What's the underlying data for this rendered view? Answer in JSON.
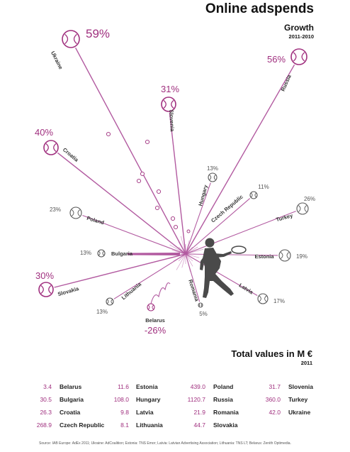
{
  "title": "Online adspends",
  "growth_title": "Growth",
  "growth_period": "2011-2010",
  "totals_title": "Total values in M €",
  "totals_year": "2011",
  "source": "Source: IAB Europe: AdEx 2011; Ukraine: AdCoalition; Estonia: TNS Emor; Latvia: Latvian Advertising Association; Lithuania: TNS LT; Belarus: Zenith Optimedia.",
  "colors": {
    "magenta": "#a0307f",
    "negative": "#a0307f",
    "gray": "#555555",
    "ray": "#b25aa0",
    "silhouette": "#4a4a4a"
  },
  "icons": {
    "ball": "tennis-ball-icon",
    "player": "tennis-player-silhouette-icon"
  },
  "chart_data": [
    {
      "type": "radial",
      "title": "Online adspends",
      "subtitle": "Growth 2011-2010",
      "series": [
        {
          "country": "Ukraine",
          "growth_label": "59%",
          "growth": 59
        },
        {
          "country": "Russia",
          "growth_label": "56%",
          "growth": 56
        },
        {
          "country": "Croatia",
          "growth_label": "40%",
          "growth": 40
        },
        {
          "country": "Slovenia",
          "growth_label": "31%",
          "growth": 31
        },
        {
          "country": "Slovakia",
          "growth_label": "30%",
          "growth": 30
        },
        {
          "country": "Turkey",
          "growth_label": "26%",
          "growth": 26
        },
        {
          "country": "Poland",
          "growth_label": "23%",
          "growth": 23
        },
        {
          "country": "Estonia",
          "growth_label": "19%",
          "growth": 19
        },
        {
          "country": "Latvia",
          "growth_label": "17%",
          "growth": 17
        },
        {
          "country": "Hungary",
          "growth_label": "13%",
          "growth": 13
        },
        {
          "country": "Bulgaria",
          "growth_label": "13%",
          "growth": 13
        },
        {
          "country": "Lithuania",
          "growth_label": "13%",
          "growth": 13
        },
        {
          "country": "Czech Republic",
          "growth_label": "11%",
          "growth": 11
        },
        {
          "country": "Romania",
          "growth_label": "5%",
          "growth": 5
        },
        {
          "country": "Belarus",
          "growth_label": "-26%",
          "growth": -26
        }
      ]
    },
    {
      "type": "table",
      "title": "Total values in M €",
      "subtitle": "2011",
      "columns": [
        [
          {
            "value": "3.4",
            "country": "Belarus"
          },
          {
            "value": "30.5",
            "country": "Bulgaria"
          },
          {
            "value": "26.3",
            "country": "Croatia"
          },
          {
            "value": "268.9",
            "country": "Czech Republic"
          }
        ],
        [
          {
            "value": "11.6",
            "country": "Estonia"
          },
          {
            "value": "108.0",
            "country": "Hungary"
          },
          {
            "value": "9.8",
            "country": "Latvia"
          },
          {
            "value": "8.1",
            "country": "Lithuania"
          }
        ],
        [
          {
            "value": "439.0",
            "country": "Poland"
          },
          {
            "value": "1120.7",
            "country": "Russia"
          },
          {
            "value": "21.9",
            "country": "Romania"
          },
          {
            "value": "44.7",
            "country": "Slovakia"
          }
        ],
        [
          {
            "value": "31.7",
            "country": "Slovenia"
          },
          {
            "value": "360.0",
            "country": "Turkey"
          },
          {
            "value": "42.0",
            "country": "Ukraine"
          }
        ]
      ]
    }
  ]
}
